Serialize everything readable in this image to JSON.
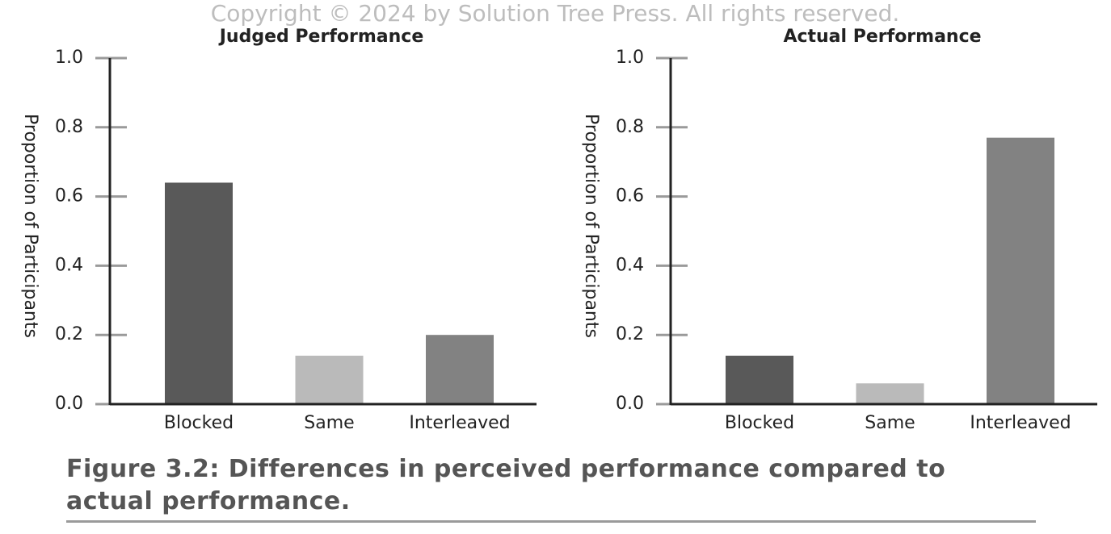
{
  "copyright": "Copyright © 2024 by Solution Tree Press. All rights reserved.",
  "caption": "Figure 3.2: Differences in perceived performance compared to actual performance.",
  "chart_data": [
    {
      "type": "bar",
      "title": "Judged Performance",
      "y_label": "Proportion of Participants",
      "categories": [
        "Blocked",
        "Same",
        "Interleaved"
      ],
      "values": [
        0.64,
        0.14,
        0.2
      ],
      "colors": [
        "#595959",
        "#bababa",
        "#828282"
      ],
      "ylim": [
        0,
        1
      ],
      "yticks": [
        {
          "value": 0,
          "label": "0.0"
        },
        0.2,
        0.4,
        0.6,
        0.8,
        {
          "value": 1,
          "label": "1.0"
        }
      ]
    },
    {
      "type": "bar",
      "title": "Actual Performance",
      "y_label": "Proportion of Participants",
      "categories": [
        "Blocked",
        "Same",
        "Interleaved"
      ],
      "values": [
        0.14,
        0.06,
        0.77
      ],
      "colors": [
        "#595959",
        "#bababa",
        "#828282"
      ],
      "ylim": [
        0,
        1
      ],
      "yticks": [
        {
          "value": 0,
          "label": "0.0"
        },
        0.2,
        0.4,
        0.6,
        0.8,
        {
          "value": 1,
          "label": "1.0"
        }
      ]
    }
  ]
}
